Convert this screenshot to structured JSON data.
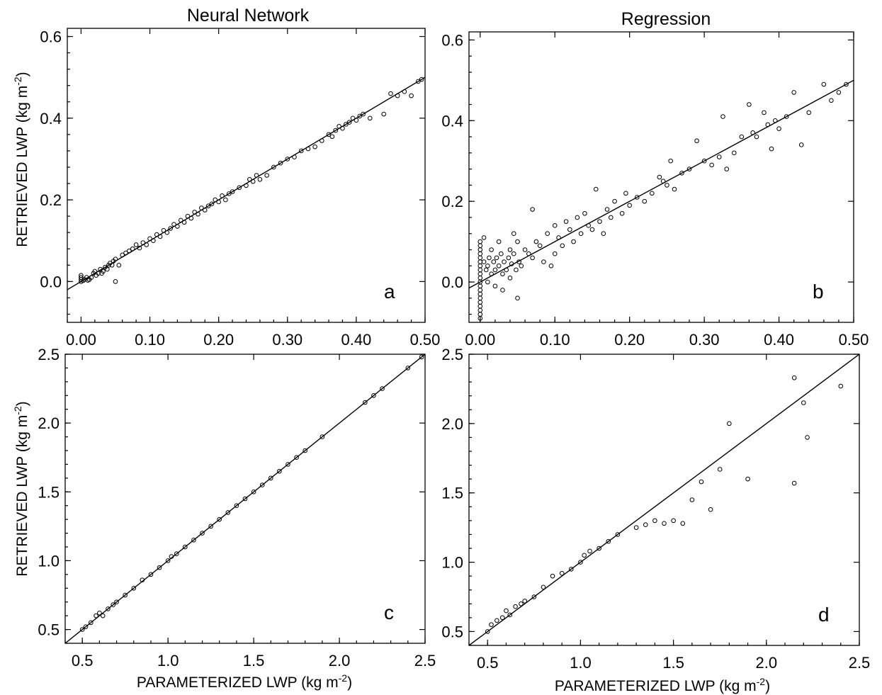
{
  "column_titles": [
    "Neural Network",
    "Regression"
  ],
  "ylabel": "RETRIEVED LWP (kg m",
  "xlabel": "PARAMETERIZED LWP (kg m",
  "unit_exponent": "-2",
  "unit_close": ")",
  "chart_data": [
    {
      "type": "scatter",
      "panel": "a",
      "xlim": [
        -0.02,
        0.5
      ],
      "ylim": [
        -0.1,
        0.62
      ],
      "xticks": [
        0.0,
        0.1,
        0.2,
        0.3,
        0.4,
        0.5
      ],
      "xtick_labels": [
        "0.00",
        "0.10",
        "0.20",
        "0.30",
        "0.40",
        "0.50"
      ],
      "yticks": [
        0.0,
        0.2,
        0.4,
        0.6
      ],
      "ytick_labels": [
        "0.0",
        "0.2",
        "0.4",
        "0.6"
      ],
      "fit_line": [
        [
          -0.02,
          -0.02
        ],
        [
          0.5,
          0.5
        ]
      ],
      "points": [
        [
          0.0,
          0.0
        ],
        [
          0.0,
          0.005
        ],
        [
          0.0,
          0.01
        ],
        [
          0.0,
          0.015
        ],
        [
          0.003,
          0.002
        ],
        [
          0.005,
          0.005
        ],
        [
          0.008,
          0.01
        ],
        [
          0.01,
          0.003
        ],
        [
          0.012,
          0.005
        ],
        [
          0.015,
          0.01
        ],
        [
          0.018,
          0.02
        ],
        [
          0.02,
          0.025
        ],
        [
          0.022,
          0.015
        ],
        [
          0.025,
          0.02
        ],
        [
          0.028,
          0.03
        ],
        [
          0.03,
          0.02
        ],
        [
          0.032,
          0.025
        ],
        [
          0.035,
          0.035
        ],
        [
          0.038,
          0.03
        ],
        [
          0.04,
          0.04
        ],
        [
          0.042,
          0.045
        ],
        [
          0.045,
          0.04
        ],
        [
          0.047,
          0.05
        ],
        [
          0.05,
          0.055
        ],
        [
          0.05,
          0.0
        ],
        [
          0.055,
          0.04
        ],
        [
          0.06,
          0.065
        ],
        [
          0.065,
          0.07
        ],
        [
          0.07,
          0.075
        ],
        [
          0.075,
          0.08
        ],
        [
          0.08,
          0.09
        ],
        [
          0.085,
          0.082
        ],
        [
          0.09,
          0.095
        ],
        [
          0.095,
          0.09
        ],
        [
          0.1,
          0.105
        ],
        [
          0.105,
          0.1
        ],
        [
          0.11,
          0.115
        ],
        [
          0.115,
          0.11
        ],
        [
          0.12,
          0.125
        ],
        [
          0.125,
          0.12
        ],
        [
          0.13,
          0.13
        ],
        [
          0.135,
          0.14
        ],
        [
          0.14,
          0.135
        ],
        [
          0.145,
          0.15
        ],
        [
          0.15,
          0.145
        ],
        [
          0.155,
          0.16
        ],
        [
          0.16,
          0.155
        ],
        [
          0.165,
          0.17
        ],
        [
          0.17,
          0.165
        ],
        [
          0.175,
          0.18
        ],
        [
          0.18,
          0.175
        ],
        [
          0.185,
          0.185
        ],
        [
          0.19,
          0.19
        ],
        [
          0.195,
          0.2
        ],
        [
          0.2,
          0.195
        ],
        [
          0.205,
          0.21
        ],
        [
          0.21,
          0.2
        ],
        [
          0.215,
          0.215
        ],
        [
          0.22,
          0.22
        ],
        [
          0.23,
          0.23
        ],
        [
          0.24,
          0.235
        ],
        [
          0.245,
          0.25
        ],
        [
          0.25,
          0.245
        ],
        [
          0.255,
          0.26
        ],
        [
          0.26,
          0.25
        ],
        [
          0.27,
          0.26
        ],
        [
          0.28,
          0.28
        ],
        [
          0.29,
          0.29
        ],
        [
          0.3,
          0.3
        ],
        [
          0.31,
          0.305
        ],
        [
          0.32,
          0.32
        ],
        [
          0.33,
          0.325
        ],
        [
          0.34,
          0.33
        ],
        [
          0.35,
          0.345
        ],
        [
          0.36,
          0.36
        ],
        [
          0.365,
          0.355
        ],
        [
          0.37,
          0.37
        ],
        [
          0.375,
          0.38
        ],
        [
          0.38,
          0.375
        ],
        [
          0.385,
          0.385
        ],
        [
          0.39,
          0.39
        ],
        [
          0.395,
          0.4
        ],
        [
          0.4,
          0.395
        ],
        [
          0.405,
          0.405
        ],
        [
          0.41,
          0.41
        ],
        [
          0.42,
          0.4
        ],
        [
          0.44,
          0.41
        ],
        [
          0.45,
          0.46
        ],
        [
          0.46,
          0.455
        ],
        [
          0.47,
          0.465
        ],
        [
          0.48,
          0.455
        ],
        [
          0.49,
          0.49
        ],
        [
          0.495,
          0.495
        ]
      ]
    },
    {
      "type": "scatter",
      "panel": "b",
      "xlim": [
        -0.015,
        0.5
      ],
      "ylim": [
        -0.1,
        0.62
      ],
      "xticks": [
        0.0,
        0.1,
        0.2,
        0.3,
        0.4,
        0.5
      ],
      "xtick_labels": [
        "0.00",
        "0.10",
        "0.20",
        "0.30",
        "0.40",
        "0.50"
      ],
      "yticks": [
        0.0,
        0.2,
        0.4,
        0.6
      ],
      "ytick_labels": [
        "0.0",
        "0.2",
        "0.4",
        "0.6"
      ],
      "fit_line": [
        [
          -0.015,
          -0.015
        ],
        [
          0.5,
          0.5
        ]
      ],
      "points": [
        [
          0.0,
          -0.09
        ],
        [
          0.0,
          -0.08
        ],
        [
          0.0,
          -0.07
        ],
        [
          0.0,
          -0.06
        ],
        [
          0.0,
          -0.05
        ],
        [
          0.0,
          -0.04
        ],
        [
          0.0,
          -0.03
        ],
        [
          0.0,
          -0.02
        ],
        [
          0.0,
          -0.01
        ],
        [
          0.0,
          0.0
        ],
        [
          0.0,
          0.01
        ],
        [
          0.0,
          0.02
        ],
        [
          0.0,
          0.03
        ],
        [
          0.0,
          0.04
        ],
        [
          0.0,
          0.05
        ],
        [
          0.0,
          0.06
        ],
        [
          0.0,
          0.07
        ],
        [
          0.0,
          0.08
        ],
        [
          0.0,
          0.09
        ],
        [
          0.0,
          0.1
        ],
        [
          0.005,
          0.11
        ],
        [
          0.005,
          0.05
        ],
        [
          0.008,
          0.03
        ],
        [
          0.01,
          0.0
        ],
        [
          0.01,
          0.04
        ],
        [
          0.012,
          0.06
        ],
        [
          0.015,
          0.02
        ],
        [
          0.015,
          0.08
        ],
        [
          0.018,
          0.05
        ],
        [
          0.02,
          0.03
        ],
        [
          0.02,
          -0.01
        ],
        [
          0.022,
          0.06
        ],
        [
          0.025,
          0.04
        ],
        [
          0.025,
          0.1
        ],
        [
          0.028,
          0.07
        ],
        [
          0.03,
          0.02
        ],
        [
          0.03,
          -0.02
        ],
        [
          0.032,
          0.05
        ],
        [
          0.035,
          0.03
        ],
        [
          0.038,
          0.06
        ],
        [
          0.04,
          0.08
        ],
        [
          0.04,
          0.01
        ],
        [
          0.042,
          0.045
        ],
        [
          0.045,
          0.07
        ],
        [
          0.045,
          0.12
        ],
        [
          0.048,
          0.03
        ],
        [
          0.05,
          0.1
        ],
        [
          0.05,
          -0.04
        ],
        [
          0.052,
          0.05
        ],
        [
          0.055,
          0.04
        ],
        [
          0.06,
          0.08
        ],
        [
          0.065,
          0.07
        ],
        [
          0.07,
          0.06
        ],
        [
          0.07,
          0.18
        ],
        [
          0.075,
          0.1
        ],
        [
          0.08,
          0.09
        ],
        [
          0.085,
          0.05
        ],
        [
          0.09,
          0.12
        ],
        [
          0.095,
          0.04
        ],
        [
          0.1,
          0.07
        ],
        [
          0.1,
          0.14
        ],
        [
          0.105,
          0.11
        ],
        [
          0.11,
          0.09
        ],
        [
          0.115,
          0.15
        ],
        [
          0.12,
          0.13
        ],
        [
          0.125,
          0.1
        ],
        [
          0.13,
          0.16
        ],
        [
          0.135,
          0.12
        ],
        [
          0.14,
          0.17
        ],
        [
          0.145,
          0.14
        ],
        [
          0.15,
          0.13
        ],
        [
          0.155,
          0.23
        ],
        [
          0.16,
          0.15
        ],
        [
          0.165,
          0.12
        ],
        [
          0.17,
          0.18
        ],
        [
          0.175,
          0.16
        ],
        [
          0.18,
          0.2
        ],
        [
          0.19,
          0.17
        ],
        [
          0.195,
          0.22
        ],
        [
          0.2,
          0.19
        ],
        [
          0.21,
          0.21
        ],
        [
          0.22,
          0.2
        ],
        [
          0.23,
          0.22
        ],
        [
          0.24,
          0.26
        ],
        [
          0.245,
          0.25
        ],
        [
          0.25,
          0.24
        ],
        [
          0.255,
          0.3
        ],
        [
          0.26,
          0.23
        ],
        [
          0.27,
          0.27
        ],
        [
          0.28,
          0.28
        ],
        [
          0.29,
          0.35
        ],
        [
          0.3,
          0.3
        ],
        [
          0.31,
          0.29
        ],
        [
          0.32,
          0.31
        ],
        [
          0.325,
          0.41
        ],
        [
          0.33,
          0.28
        ],
        [
          0.34,
          0.32
        ],
        [
          0.35,
          0.36
        ],
        [
          0.36,
          0.44
        ],
        [
          0.365,
          0.37
        ],
        [
          0.37,
          0.36
        ],
        [
          0.38,
          0.42
        ],
        [
          0.385,
          0.39
        ],
        [
          0.39,
          0.33
        ],
        [
          0.395,
          0.4
        ],
        [
          0.4,
          0.38
        ],
        [
          0.41,
          0.41
        ],
        [
          0.42,
          0.47
        ],
        [
          0.43,
          0.34
        ],
        [
          0.44,
          0.42
        ],
        [
          0.46,
          0.49
        ],
        [
          0.47,
          0.45
        ],
        [
          0.48,
          0.47
        ],
        [
          0.49,
          0.49
        ]
      ]
    },
    {
      "type": "scatter",
      "panel": "c",
      "xlim": [
        0.4,
        2.5
      ],
      "ylim": [
        0.4,
        2.5
      ],
      "xticks": [
        0.5,
        1.0,
        1.5,
        2.0,
        2.5
      ],
      "xtick_labels": [
        "0.5",
        "1.0",
        "1.5",
        "2.0",
        "2.5"
      ],
      "yticks": [
        0.5,
        1.0,
        1.5,
        2.0,
        2.5
      ],
      "ytick_labels": [
        "0.5",
        "1.0",
        "1.5",
        "2.0",
        "2.5"
      ],
      "fit_line": [
        [
          0.4,
          0.4
        ],
        [
          2.5,
          2.5
        ]
      ],
      "points": [
        [
          0.5,
          0.5
        ],
        [
          0.52,
          0.52
        ],
        [
          0.55,
          0.55
        ],
        [
          0.58,
          0.6
        ],
        [
          0.6,
          0.62
        ],
        [
          0.62,
          0.6
        ],
        [
          0.65,
          0.65
        ],
        [
          0.68,
          0.68
        ],
        [
          0.7,
          0.7
        ],
        [
          0.75,
          0.75
        ],
        [
          0.8,
          0.8
        ],
        [
          0.85,
          0.86
        ],
        [
          0.9,
          0.9
        ],
        [
          0.95,
          0.95
        ],
        [
          1.0,
          1.0
        ],
        [
          1.02,
          1.03
        ],
        [
          1.05,
          1.05
        ],
        [
          1.1,
          1.1
        ],
        [
          1.15,
          1.15
        ],
        [
          1.2,
          1.2
        ],
        [
          1.25,
          1.25
        ],
        [
          1.3,
          1.3
        ],
        [
          1.35,
          1.35
        ],
        [
          1.4,
          1.4
        ],
        [
          1.45,
          1.45
        ],
        [
          1.5,
          1.5
        ],
        [
          1.55,
          1.55
        ],
        [
          1.6,
          1.6
        ],
        [
          1.65,
          1.65
        ],
        [
          1.7,
          1.7
        ],
        [
          1.75,
          1.75
        ],
        [
          1.8,
          1.8
        ],
        [
          1.9,
          1.9
        ],
        [
          2.15,
          2.15
        ],
        [
          2.2,
          2.2
        ],
        [
          2.25,
          2.25
        ],
        [
          2.4,
          2.4
        ],
        [
          2.48,
          2.48
        ]
      ]
    },
    {
      "type": "scatter",
      "panel": "d",
      "xlim": [
        0.4,
        2.5
      ],
      "ylim": [
        0.4,
        2.5
      ],
      "xticks": [
        0.5,
        1.0,
        1.5,
        2.0,
        2.5
      ],
      "xtick_labels": [
        "0.5",
        "1.0",
        "1.5",
        "2.0",
        "2.5"
      ],
      "yticks": [
        0.5,
        1.0,
        1.5,
        2.0,
        2.5
      ],
      "ytick_labels": [
        "0.5",
        "1.0",
        "1.5",
        "2.0",
        "2.5"
      ],
      "fit_line": [
        [
          0.4,
          0.4
        ],
        [
          2.5,
          2.5
        ]
      ],
      "points": [
        [
          0.5,
          0.5
        ],
        [
          0.52,
          0.55
        ],
        [
          0.55,
          0.58
        ],
        [
          0.58,
          0.6
        ],
        [
          0.6,
          0.65
        ],
        [
          0.62,
          0.62
        ],
        [
          0.65,
          0.68
        ],
        [
          0.68,
          0.7
        ],
        [
          0.7,
          0.72
        ],
        [
          0.75,
          0.75
        ],
        [
          0.8,
          0.82
        ],
        [
          0.85,
          0.9
        ],
        [
          0.9,
          0.92
        ],
        [
          0.95,
          0.95
        ],
        [
          1.0,
          1.0
        ],
        [
          1.02,
          1.05
        ],
        [
          1.05,
          1.08
        ],
        [
          1.1,
          1.1
        ],
        [
          1.15,
          1.15
        ],
        [
          1.2,
          1.2
        ],
        [
          1.3,
          1.25
        ],
        [
          1.35,
          1.27
        ],
        [
          1.4,
          1.3
        ],
        [
          1.45,
          1.28
        ],
        [
          1.5,
          1.3
        ],
        [
          1.55,
          1.28
        ],
        [
          1.6,
          1.45
        ],
        [
          1.65,
          1.58
        ],
        [
          1.7,
          1.38
        ],
        [
          1.75,
          1.67
        ],
        [
          1.8,
          2.0
        ],
        [
          1.9,
          1.6
        ],
        [
          2.15,
          2.33
        ],
        [
          2.15,
          1.57
        ],
        [
          2.2,
          2.15
        ],
        [
          2.22,
          1.9
        ],
        [
          2.4,
          2.27
        ]
      ]
    }
  ]
}
